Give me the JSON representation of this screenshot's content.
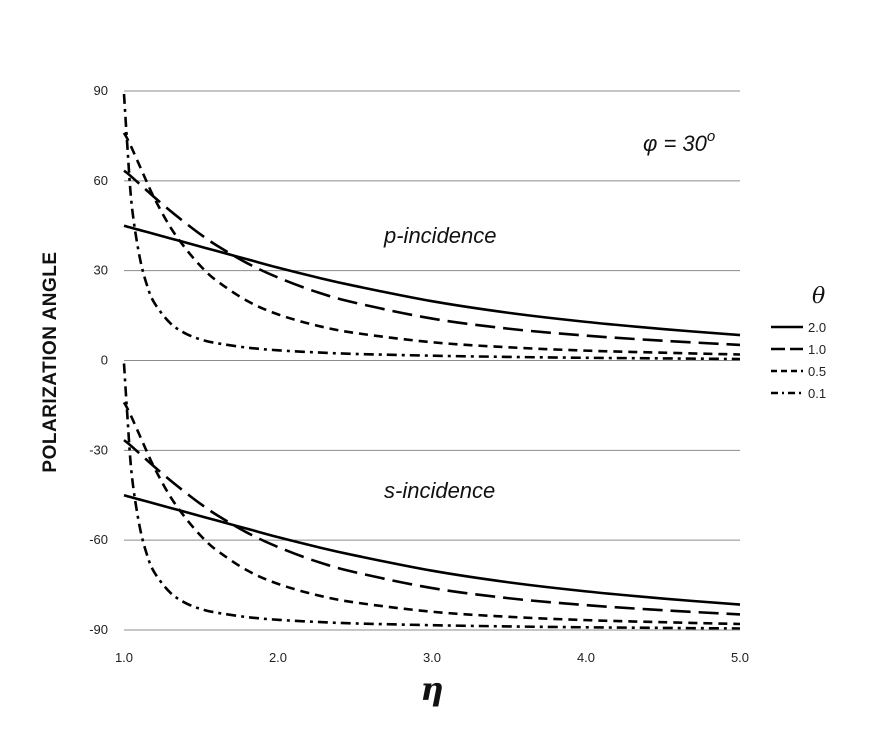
{
  "chart_data": {
    "type": "line",
    "title": "",
    "xlabel": "η",
    "ylabel": "POLARIZATION ANGLE",
    "xlim": [
      1.0,
      5.0
    ],
    "ylim": [
      -90,
      90
    ],
    "x_ticks": [
      "1.0",
      "2.0",
      "3.0",
      "4.0",
      "5.0"
    ],
    "x_tick_values": [
      1,
      2,
      3,
      4,
      5
    ],
    "y_ticks": [
      "90",
      "60",
      "30",
      "0",
      "-30",
      "-60",
      "-90"
    ],
    "y_tick_values": [
      90,
      60,
      30,
      0,
      -30,
      -60,
      -90
    ],
    "grid": "horizontal",
    "legend_title": "θ",
    "legend_position": "right",
    "annotations": {
      "phi": "φ = 30",
      "phi_superscript": "o",
      "p_label": "p-incidence",
      "s_label": "s-incidence"
    },
    "x": [
      1.0,
      1.02,
      1.05,
      1.1,
      1.15,
      1.2,
      1.3,
      1.4,
      1.5,
      1.6,
      1.8,
      2.0,
      2.25,
      2.5,
      3.0,
      3.5,
      4.0,
      4.5,
      5.0
    ],
    "series": [
      {
        "name": "2.0",
        "dash": "solid",
        "group": "p-incidence",
        "values": [
          45.0,
          44.7,
          44.3,
          43.6,
          42.9,
          42.2,
          40.8,
          39.4,
          38.0,
          36.6,
          33.8,
          31.0,
          27.8,
          24.9,
          19.8,
          15.9,
          12.9,
          10.5,
          8.5
        ]
      },
      {
        "name": "1.0",
        "dash": "long-dash",
        "group": "p-incidence",
        "values": [
          63.4,
          62.6,
          61.3,
          59.0,
          56.7,
          54.4,
          50.0,
          45.9,
          42.0,
          38.5,
          32.5,
          27.7,
          22.9,
          19.3,
          14.0,
          10.6,
          8.3,
          6.6,
          5.2
        ]
      },
      {
        "name": "0.5",
        "dash": "short-dash",
        "group": "p-incidence",
        "values": [
          76.0,
          74.2,
          71.0,
          65.2,
          59.4,
          53.9,
          44.6,
          37.4,
          31.4,
          26.7,
          19.9,
          15.4,
          11.7,
          9.2,
          6.1,
          4.4,
          3.3,
          2.6,
          2.0
        ]
      },
      {
        "name": "0.1",
        "dash": "dash-dot",
        "group": "p-incidence",
        "values": [
          89.0,
          73.0,
          52.0,
          35.0,
          25.0,
          19.0,
          12.5,
          9.0,
          7.0,
          5.8,
          4.3,
          3.4,
          2.7,
          2.2,
          1.6,
          1.2,
          0.9,
          0.7,
          0.5
        ]
      },
      {
        "name": "2.0",
        "dash": "solid",
        "group": "s-incidence",
        "values": [
          -45.0,
          -45.3,
          -45.7,
          -46.4,
          -47.1,
          -47.8,
          -49.2,
          -50.6,
          -52.0,
          -53.4,
          -56.2,
          -59.0,
          -62.2,
          -65.1,
          -70.2,
          -74.1,
          -77.1,
          -79.5,
          -81.5
        ]
      },
      {
        "name": "1.0",
        "dash": "long-dash",
        "group": "s-incidence",
        "values": [
          -26.6,
          -27.4,
          -28.7,
          -31.0,
          -33.3,
          -35.6,
          -40.0,
          -44.1,
          -48.0,
          -51.5,
          -57.5,
          -62.3,
          -67.1,
          -70.7,
          -76.0,
          -79.4,
          -81.7,
          -83.4,
          -84.8
        ]
      },
      {
        "name": "0.5",
        "dash": "short-dash",
        "group": "s-incidence",
        "values": [
          -14.0,
          -15.8,
          -19.0,
          -24.8,
          -30.6,
          -36.1,
          -45.4,
          -52.6,
          -58.6,
          -63.3,
          -70.1,
          -74.6,
          -78.3,
          -80.8,
          -83.9,
          -85.6,
          -86.7,
          -87.4,
          -88.0
        ]
      },
      {
        "name": "0.1",
        "dash": "dash-dot",
        "group": "s-incidence",
        "values": [
          -1.0,
          -17.0,
          -38.0,
          -55.0,
          -65.0,
          -71.0,
          -77.5,
          -81.0,
          -83.0,
          -84.2,
          -85.7,
          -86.6,
          -87.3,
          -87.8,
          -88.4,
          -88.8,
          -89.1,
          -89.3,
          -89.5
        ]
      }
    ]
  }
}
